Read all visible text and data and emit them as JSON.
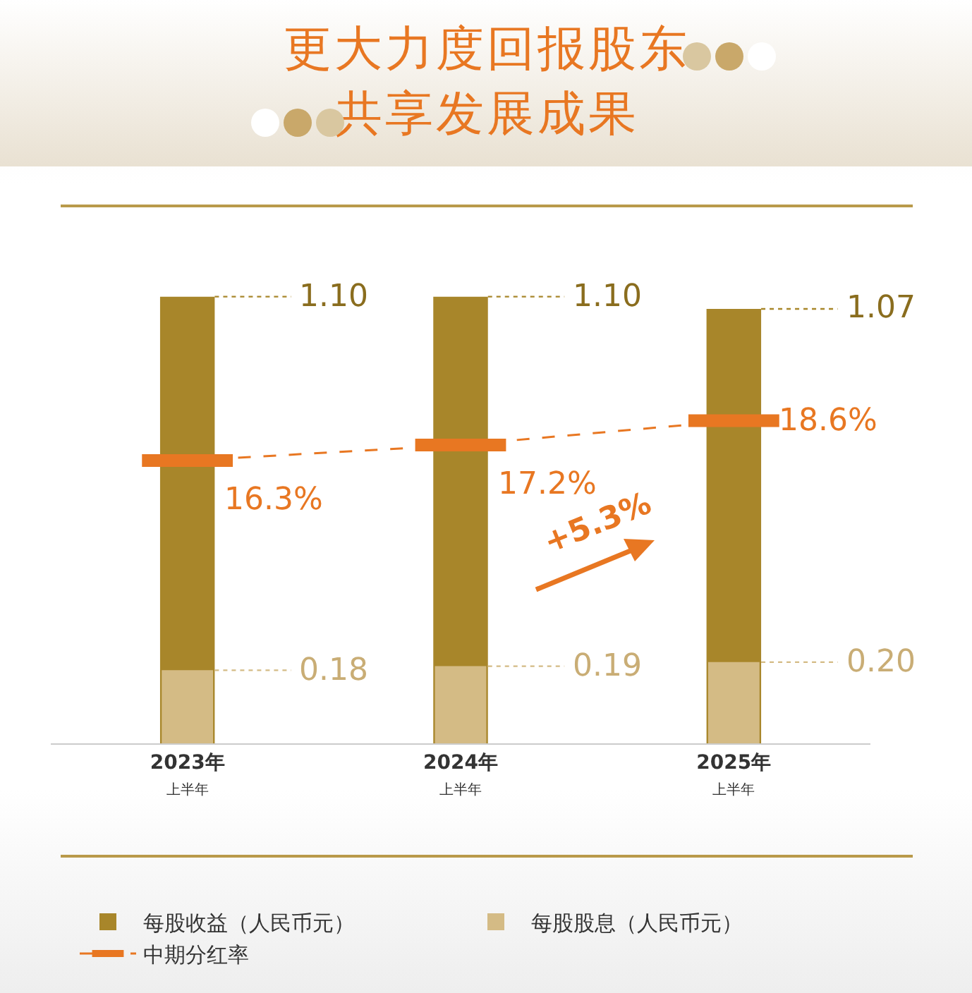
{
  "chart_data": {
    "type": "bar",
    "title": "更大力度回报股东共享发展成果",
    "categories": [
      "2023年上半年",
      "2024年上半年",
      "2025年上半年"
    ],
    "series": [
      {
        "name": "每股收益（人民币元）",
        "color": "#a8862a",
        "values": [
          1.1,
          1.1,
          1.07
        ],
        "value_labels": [
          "1.10",
          "1.10",
          "1.07"
        ]
      },
      {
        "name": "每股股息（人民币元）",
        "color": "#d4bb85",
        "values": [
          0.18,
          0.19,
          0.2
        ],
        "value_labels": [
          "0.18",
          "0.19",
          "0.20"
        ]
      },
      {
        "name": "中期分红率",
        "type": "line",
        "axis": "y2",
        "color": "#e87722",
        "line_style": "dashed",
        "values": [
          16.3,
          17.2,
          18.6
        ],
        "value_labels": [
          "16.3%",
          "17.2%",
          "18.6%"
        ]
      }
    ],
    "ylim": [
      0,
      1.32
    ],
    "y2lim": [
      0,
      30.9
    ],
    "tick_labels": "x",
    "legend": "bottom",
    "annotations": [
      "+5.3%"
    ]
  }
}
